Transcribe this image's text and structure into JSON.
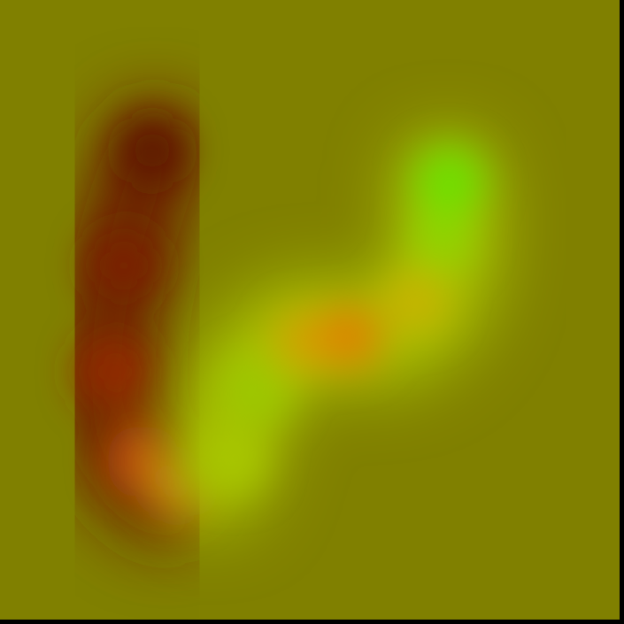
{
  "image": {
    "background_color": "#808000",
    "frame_color": "#000000",
    "blobs": [
      {
        "name": "dark-red-stroke",
        "colors": [
          "#6b1c00",
          "#7a2a00",
          "#8c3000",
          "#b84a10",
          "#d05a18"
        ]
      },
      {
        "name": "green-yellow-stroke",
        "colors": [
          "#98c400",
          "#a9c800",
          "#d6a000",
          "#dd8800",
          "#d7a600",
          "#9cc800",
          "#6fe000"
        ]
      }
    ]
  }
}
